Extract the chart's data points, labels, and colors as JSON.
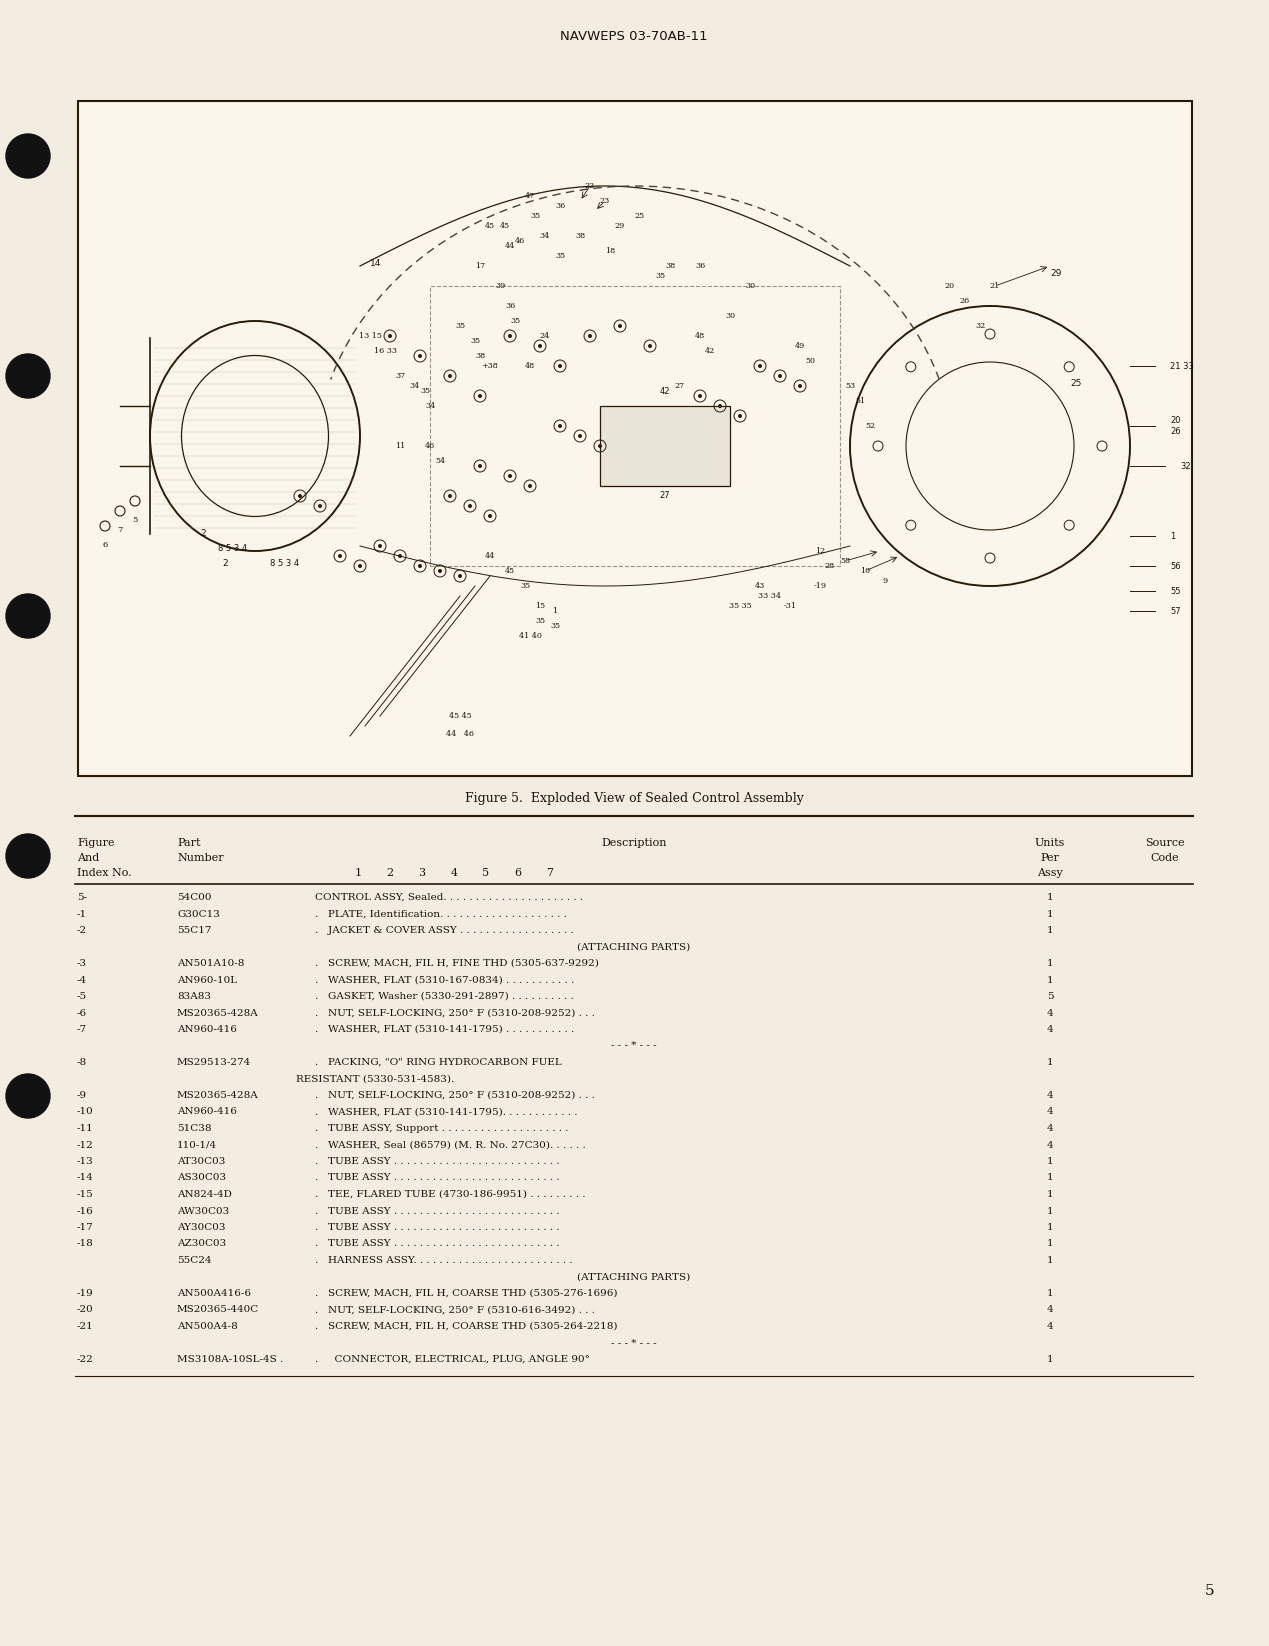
{
  "page_bg": "#f2ede0",
  "header_text": "NAVWEPS 03-70AB-11",
  "figure_caption": "Figure 5.  Exploded View of Sealed Control Assembly",
  "page_number": "5",
  "description_subheaders": [
    "1",
    "2",
    "3",
    "4",
    "5",
    "6",
    "7"
  ],
  "table_rows": [
    [
      "5-",
      "54C00",
      "CONTROL ASSY, Sealed. . . . . . . . . . . . . . . . . . . . . .",
      "1"
    ],
    [
      "-1",
      "G30C13",
      ".   PLATE, Identification. . . . . . . . . . . . . . . . . . . .",
      "1"
    ],
    [
      "-2",
      "55C17",
      ".   JACKET & COVER ASSY . . . . . . . . . . . . . . . . . .",
      "1"
    ],
    [
      "",
      "",
      "(ATTACHING PARTS)",
      ""
    ],
    [
      "-3",
      "AN501A10-8",
      ".   SCREW, MACH, FIL H, FINE THD (5305-637-9292)",
      "1"
    ],
    [
      "-4",
      "AN960-10L",
      ".   WASHER, FLAT (5310-167-0834) . . . . . . . . . . .",
      "1"
    ],
    [
      "-5",
      "83A83",
      ".   GASKET, Washer (5330-291-2897) . . . . . . . . . .",
      "5"
    ],
    [
      "-6",
      "MS20365-428A",
      ".   NUT, SELF-LOCKING, 250° F (5310-208-9252) . . .",
      "4"
    ],
    [
      "-7",
      "AN960-416",
      ".   WASHER, FLAT (5310-141-1795) . . . . . . . . . . .",
      "4"
    ],
    [
      "",
      "",
      "- - - * - - -",
      ""
    ],
    [
      "-8",
      "MS29513-274",
      ".   PACKING, \"O\" RING HYDROCARBON FUEL",
      "1"
    ],
    [
      "",
      "",
      "    RESISTANT (5330-531-4583).",
      ""
    ],
    [
      "-9",
      "MS20365-428A",
      ".   NUT, SELF-LOCKING, 250° F (5310-208-9252) . . .",
      "4"
    ],
    [
      "-10",
      "AN960-416",
      ".   WASHER, FLAT (5310-141-1795). . . . . . . . . . . .",
      "4"
    ],
    [
      "-11",
      "51C38",
      ".   TUBE ASSY, Support . . . . . . . . . . . . . . . . . . . .",
      "4"
    ],
    [
      "-12",
      "110-1/4",
      ".   WASHER, Seal (86579) (M. R. No. 27C30). . . . . .",
      "4"
    ],
    [
      "-13",
      "AT30C03",
      ".   TUBE ASSY . . . . . . . . . . . . . . . . . . . . . . . . . .",
      "1"
    ],
    [
      "-14",
      "AS30C03",
      ".   TUBE ASSY . . . . . . . . . . . . . . . . . . . . . . . . . .",
      "1"
    ],
    [
      "-15",
      "AN824-4D",
      ".   TEE, FLARED TUBE (4730-186-9951) . . . . . . . . .",
      "1"
    ],
    [
      "-16",
      "AW30C03",
      ".   TUBE ASSY . . . . . . . . . . . . . . . . . . . . . . . . . .",
      "1"
    ],
    [
      "-17",
      "AY30C03",
      ".   TUBE ASSY . . . . . . . . . . . . . . . . . . . . . . . . . .",
      "1"
    ],
    [
      "-18",
      "AZ30C03",
      ".   TUBE ASSY . . . . . . . . . . . . . . . . . . . . . . . . . .",
      "1"
    ],
    [
      "",
      "55C24",
      ".   HARNESS ASSY. . . . . . . . . . . . . . . . . . . . . . . . .",
      "1"
    ],
    [
      "",
      "",
      "(ATTACHING PARTS)",
      ""
    ],
    [
      "-19",
      "AN500A416-6",
      ".   SCREW, MACH, FIL H, COARSE THD (5305-276-1696)",
      "1"
    ],
    [
      "-20",
      "MS20365-440C",
      ".   NUT, SELF-LOCKING, 250° F (5310-616-3492) . . .",
      "4"
    ],
    [
      "-21",
      "AN500A4-8",
      ".   SCREW, MACH, FIL H, COARSE THD (5305-264-2218)",
      "4"
    ],
    [
      "",
      "",
      "- - - * - - -",
      ""
    ],
    [
      "-22",
      "MS3108A-10SL-4S .",
      ".     CONNECTOR, ELECTRICAL, PLUG, ANGLE 90°",
      "1"
    ]
  ],
  "text_color": "#1a1209",
  "line_color": "#2a1a08"
}
